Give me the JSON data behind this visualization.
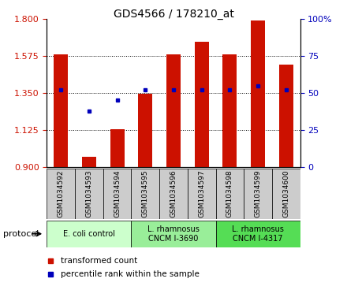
{
  "title": "GDS4566 / 178210_at",
  "samples": [
    "GSM1034592",
    "GSM1034593",
    "GSM1034594",
    "GSM1034595",
    "GSM1034596",
    "GSM1034597",
    "GSM1034598",
    "GSM1034599",
    "GSM1034600"
  ],
  "transformed_count": [
    1.585,
    0.965,
    1.13,
    1.345,
    1.585,
    1.66,
    1.585,
    1.79,
    1.52
  ],
  "percentile_rank": [
    52,
    38,
    45,
    52,
    52,
    52,
    52,
    55,
    52
  ],
  "ylim_left": [
    0.9,
    1.8
  ],
  "ylim_right": [
    0,
    100
  ],
  "yticks_left": [
    0.9,
    1.125,
    1.35,
    1.575,
    1.8
  ],
  "yticks_right": [
    0,
    25,
    50,
    75,
    100
  ],
  "bar_color": "#CC1100",
  "dot_color": "#0000BB",
  "bg_color": "#FFFFFF",
  "protocol_groups": [
    {
      "label": "E. coli control",
      "start": 0,
      "end": 3,
      "color": "#CCFFCC"
    },
    {
      "label": "L. rhamnosus\nCNCM I-3690",
      "start": 3,
      "end": 6,
      "color": "#99EE99"
    },
    {
      "label": "L. rhamnosus\nCNCM I-4317",
      "start": 6,
      "end": 9,
      "color": "#55DD55"
    }
  ],
  "legend_bar_label": "transformed count",
  "legend_dot_label": "percentile rank within the sample",
  "protocol_label": "protocol",
  "bar_width": 0.5,
  "tick_label_color_left": "#CC1100",
  "tick_label_color_right": "#0000BB",
  "sample_box_color": "#CCCCCC",
  "title_fontsize": 10,
  "axis_fontsize": 8,
  "legend_fontsize": 7.5
}
